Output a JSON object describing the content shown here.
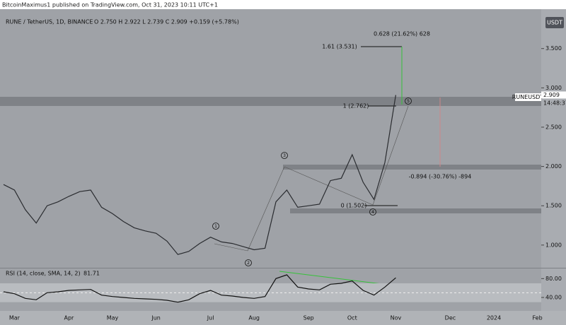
{
  "header": {
    "published": "BitcoinMaximus1 published on TradingView.com, Oct 31, 2023 10:11 UTC+1"
  },
  "chart_data": [
    {
      "type": "line",
      "title": "RUNE / TetherUS, 1D, BINANCE",
      "ohlc_label": "O 2.750  H 2.922  L 2.739  C 2.909  +0.159 (+5.78%)",
      "currency": "USDT",
      "symbol": "RUNEUSDT",
      "last_price": 2.909,
      "countdown": "14:48:37",
      "color": "#2a2c30",
      "values": [
        1.77,
        1.7,
        1.45,
        1.28,
        1.5,
        1.55,
        1.62,
        1.68,
        1.7,
        1.48,
        1.4,
        1.3,
        1.22,
        1.18,
        1.15,
        1.05,
        0.88,
        0.92,
        1.02,
        1.1,
        1.04,
        1.02,
        0.98,
        0.94,
        0.96,
        1.55,
        1.7,
        1.48,
        1.5,
        1.52,
        1.82,
        1.85,
        2.15,
        1.8,
        1.58,
        2.05,
        2.909,
        null,
        null,
        null,
        null,
        null,
        null,
        null,
        null,
        null,
        null,
        null,
        null,
        null
      ],
      "ylim": [
        0.72,
        3.92
      ],
      "yticks": [
        {
          "value": 1,
          "label": "1.000"
        },
        {
          "value": 1.5,
          "label": "1.500"
        },
        {
          "value": 2,
          "label": "2.000"
        },
        {
          "value": 2.5,
          "label": "2.500"
        },
        {
          "value": 3,
          "label": "3.000"
        },
        {
          "value": 3.5,
          "label": "3.500"
        }
      ],
      "annotations": [
        "1.61 (3.531)",
        "0.628 (21.62%) 628",
        "1 (2.762)",
        "0 (1.502)",
        "-0.894 (-30.76%) -894"
      ],
      "wave_labels": [
        "1",
        "2",
        "3",
        "4",
        "5"
      ]
    },
    {
      "type": "line",
      "title": "RSI (14, close, SMA, 14, 2)",
      "last_value": 81.71,
      "color": "#111111",
      "categories": [
        null,
        "Mar",
        null,
        null,
        null,
        null,
        "Apr",
        null,
        null,
        null,
        "May",
        null,
        null,
        null,
        "Jun",
        null,
        null,
        null,
        null,
        "Jul",
        null,
        null,
        null,
        "Aug",
        null,
        null,
        null,
        null,
        "Sep",
        null,
        null,
        null,
        "Oct",
        null,
        null,
        null,
        "Nov",
        null,
        null,
        null,
        null,
        "Dec",
        null,
        null,
        null,
        "2024",
        null,
        null,
        null,
        "Feb"
      ],
      "values": [
        52,
        48,
        38,
        35,
        50,
        52,
        55,
        56,
        57,
        45,
        42,
        40,
        38,
        37,
        36,
        34,
        30,
        35,
        48,
        55,
        45,
        43,
        40,
        38,
        42,
        80,
        88,
        62,
        58,
        56,
        68,
        70,
        75,
        55,
        45,
        62,
        81.71,
        null,
        null,
        null,
        null,
        null,
        null,
        null,
        null,
        null,
        null,
        null,
        null,
        null
      ],
      "ylim": [
        16,
        100
      ],
      "yticks": [
        {
          "value": 40,
          "label": "40.00"
        },
        {
          "value": 80,
          "label": "80.00"
        }
      ],
      "band": [
        30,
        70
      ],
      "midline": 50
    }
  ]
}
